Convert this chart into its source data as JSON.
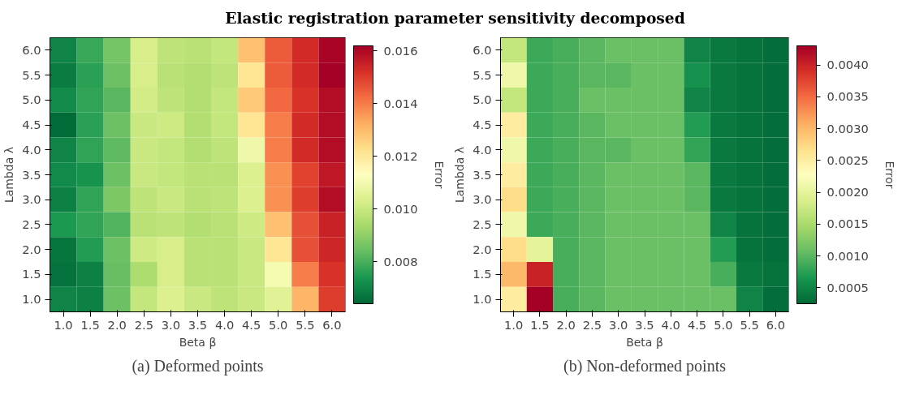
{
  "chart_data": [
    {
      "type": "heatmap",
      "title": "Elastic registration parameter sensitivity decomposed",
      "xlabel": "Beta β",
      "ylabel": "Lambda λ",
      "clabel": "Error",
      "annotations": [
        "(a) Deformed points"
      ],
      "categories": [
        "1.0",
        "1.5",
        "2.0",
        "2.5",
        "3.0",
        "3.5",
        "4.0",
        "4.5",
        "5.0",
        "5.5",
        "6.0"
      ],
      "y_categories": [
        "6.0",
        "5.5",
        "5.0",
        "4.5",
        "4.0",
        "3.5",
        "3.0",
        "2.5",
        "2.0",
        "1.5",
        "1.0"
      ],
      "clim": [
        0.0064,
        0.0162
      ],
      "cticks": [
        0.008,
        {
          "value": 0.01,
          "label": "0.010"
        },
        0.012,
        0.014,
        0.016
      ],
      "cells": [
        [
          0.007,
          0.0078,
          0.0086,
          0.0103,
          0.0098,
          0.0097,
          0.0099,
          0.0129,
          0.0145,
          0.0153,
          0.0161
        ],
        [
          0.0068,
          0.0076,
          0.0085,
          0.0103,
          0.0097,
          0.0096,
          0.0098,
          0.0121,
          0.0145,
          0.0153,
          0.0162
        ],
        [
          0.0071,
          0.0077,
          0.0082,
          0.0102,
          0.0098,
          0.0096,
          0.0099,
          0.0127,
          0.0143,
          0.0152,
          0.0159
        ],
        [
          0.0065,
          0.0076,
          0.0085,
          0.01,
          0.0101,
          0.0096,
          0.0099,
          0.0121,
          0.014,
          0.0153,
          0.0159
        ],
        [
          0.007,
          0.0077,
          0.0083,
          0.01,
          0.0099,
          0.0096,
          0.0098,
          0.0109,
          0.014,
          0.0153,
          0.0159
        ],
        [
          0.0071,
          0.0073,
          0.0085,
          0.01,
          0.0099,
          0.0097,
          0.0097,
          0.0104,
          0.0137,
          0.0149,
          0.0157
        ],
        [
          0.0069,
          0.0077,
          0.0087,
          0.0098,
          0.01,
          0.0097,
          0.0098,
          0.0104,
          0.0137,
          0.015,
          0.0159
        ],
        [
          0.0074,
          0.0077,
          0.0081,
          0.0097,
          0.0098,
          0.0096,
          0.0097,
          0.0101,
          0.0129,
          0.0147,
          0.0155
        ],
        [
          0.0067,
          0.0075,
          0.0085,
          0.0101,
          0.0103,
          0.0097,
          0.0097,
          0.01,
          0.0121,
          0.0147,
          0.0154
        ],
        [
          0.0066,
          0.0069,
          0.0084,
          0.0095,
          0.0103,
          0.0097,
          0.0097,
          0.01,
          0.011,
          0.014,
          0.0152
        ],
        [
          0.007,
          0.0069,
          0.0085,
          0.0099,
          0.0104,
          0.01,
          0.0098,
          0.01,
          0.0105,
          0.0131,
          0.015
        ]
      ]
    },
    {
      "type": "heatmap",
      "xlabel": "Beta β",
      "ylabel": "Lambda λ",
      "clabel": "Error",
      "annotations": [
        "(b) Non-deformed points"
      ],
      "categories": [
        "1.0",
        "1.5",
        "2.0",
        "2.5",
        "3.0",
        "3.5",
        "4.0",
        "4.5",
        "5.0",
        "5.5",
        "6.0"
      ],
      "y_categories": [
        "6.0",
        "5.5",
        "5.0",
        "4.5",
        "4.0",
        "3.5",
        "3.0",
        "2.5",
        "2.0",
        "1.5",
        "1.0"
      ],
      "clim": [
        0.00025,
        0.0043
      ],
      "cticks": [
        {
          "value": 0.0005,
          "label": "0.0005"
        },
        {
          "value": 0.001,
          "label": "0.0010"
        },
        {
          "value": 0.0015,
          "label": "0.0015"
        },
        {
          "value": 0.002,
          "label": "0.0020"
        },
        {
          "value": 0.0025,
          "label": "0.0025"
        },
        {
          "value": 0.003,
          "label": "0.0030"
        },
        {
          "value": 0.0035,
          "label": "0.0035"
        },
        {
          "value": 0.004,
          "label": "0.0040"
        }
      ],
      "cells": [
        [
          0.0017,
          0.00085,
          0.0009,
          0.001,
          0.0011,
          0.0011,
          0.0011,
          0.0005,
          0.0004,
          0.00035,
          0.0003
        ],
        [
          0.0021,
          0.00085,
          0.0009,
          0.001,
          0.001,
          0.0011,
          0.0011,
          0.0006,
          0.0004,
          0.00035,
          0.0003
        ],
        [
          0.0017,
          0.00085,
          0.0009,
          0.0011,
          0.0011,
          0.0011,
          0.0011,
          0.0005,
          0.0004,
          0.00035,
          0.0003
        ],
        [
          0.0025,
          0.00085,
          0.0009,
          0.001,
          0.0011,
          0.0011,
          0.0011,
          0.0007,
          0.0004,
          0.00035,
          0.0003
        ],
        [
          0.0021,
          0.00085,
          0.0009,
          0.001,
          0.001,
          0.0011,
          0.0011,
          0.0008,
          0.0004,
          0.00035,
          0.0003
        ],
        [
          0.0025,
          0.00085,
          0.0009,
          0.001,
          0.0011,
          0.0011,
          0.0011,
          0.001,
          0.0004,
          0.00035,
          0.0003
        ],
        [
          0.0027,
          0.00085,
          0.0009,
          0.001,
          0.0011,
          0.0011,
          0.0011,
          0.001,
          0.0004,
          0.00035,
          0.0003
        ],
        [
          0.0021,
          0.00085,
          0.0009,
          0.001,
          0.0011,
          0.0011,
          0.0011,
          0.0011,
          0.0005,
          0.00035,
          0.0003
        ],
        [
          0.0027,
          0.002,
          0.0009,
          0.001,
          0.0011,
          0.0011,
          0.0011,
          0.0011,
          0.0007,
          0.00035,
          0.0003
        ],
        [
          0.003,
          0.004,
          0.0009,
          0.001,
          0.0011,
          0.0011,
          0.0011,
          0.0011,
          0.0009,
          0.0004,
          0.00035
        ],
        [
          0.0025,
          0.0043,
          0.0009,
          0.001,
          0.0011,
          0.0011,
          0.0011,
          0.0011,
          0.0011,
          0.0005,
          0.0003
        ]
      ]
    }
  ]
}
